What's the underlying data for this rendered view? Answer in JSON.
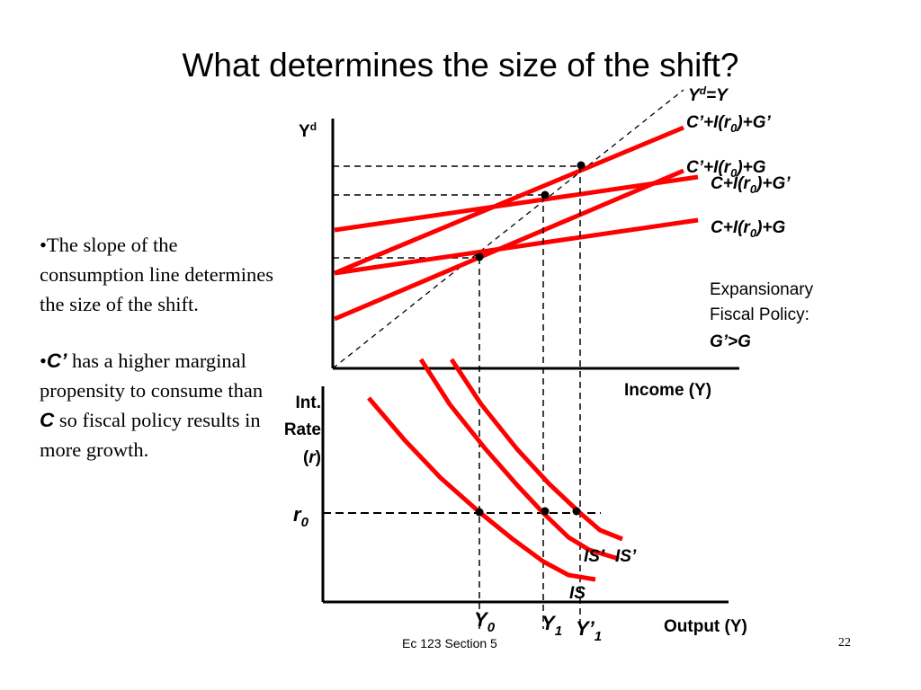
{
  "title": "What determines the size of the shift?",
  "bullets": {
    "b1": "•The slope of the consumption line determines the size of the shift.",
    "b2_bullet": "•",
    "b2_c": "C’",
    "b2_text": " has a higher marginal propensity to consume than ",
    "b2_c2": "C",
    "b2_tail": " so fiscal policy results in more growth."
  },
  "top_chart": {
    "y_axis_label": "Y",
    "y_axis_sup": "d",
    "x_axis_label": "Income (Y)",
    "line45_label_a": "Y",
    "line45_label_sup": "d",
    "line45_label_b": "=Y",
    "lines": {
      "cprime_gprime": [
        "C’+I(r",
        "0",
        ")+G’"
      ],
      "cprime_g": [
        "C’+I(r",
        "0",
        ")+G"
      ],
      "c_gprime": [
        "C+I(r",
        "0",
        ")+G’"
      ],
      "c_g": [
        "C+I(r",
        "0",
        ")+G"
      ]
    },
    "note_line1": "Expansionary",
    "note_line2": "Fiscal Policy:",
    "note_line3": "G’>G"
  },
  "bottom_chart": {
    "y_axis_label_1": "Int.",
    "y_axis_label_2": "Rate",
    "y_axis_label_3_open": "(",
    "y_axis_label_3_r": "r",
    "y_axis_label_3_close": ")",
    "x_axis_label": "Output (Y)",
    "r0_base": "r",
    "r0_sub": "0",
    "curve_labels": {
      "is": "IS",
      "is_prime_1": "IS’",
      "is_prime_2": "IS’"
    },
    "y0_base": "Y",
    "y0_sub": "0",
    "y1_base": "Y",
    "y1_sub": "1",
    "y1p_base": "Y’",
    "y1p_sub": "1"
  },
  "footer": "Ec 123 Section 5",
  "page_number": "22",
  "colors": {
    "curve": "#ff0000",
    "ink": "#000000",
    "background": "#ffffff"
  }
}
